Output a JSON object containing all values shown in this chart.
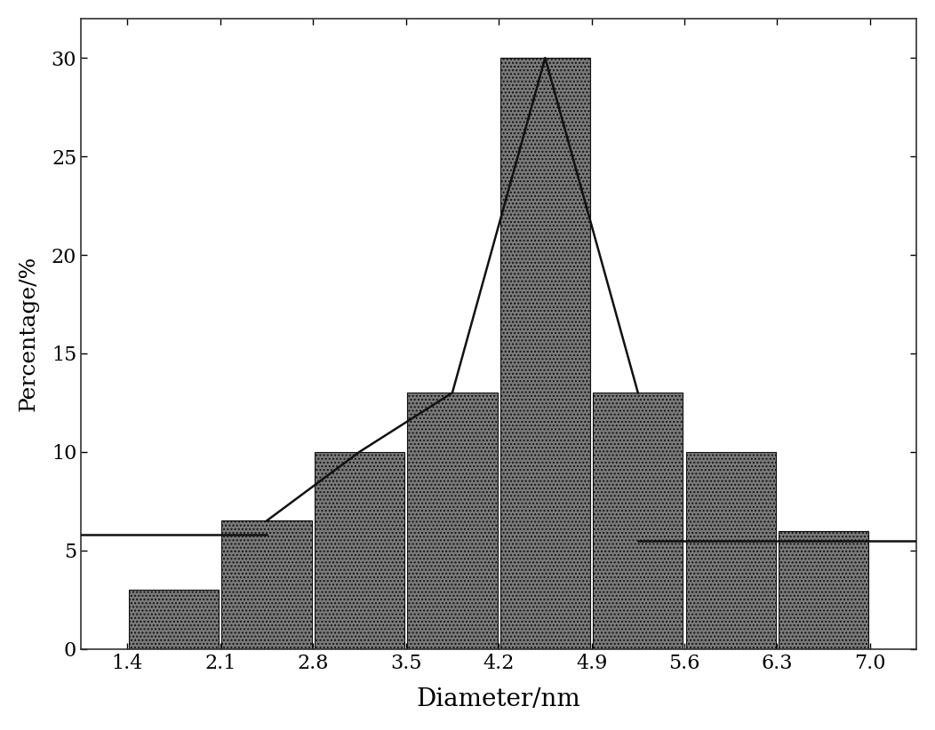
{
  "bar_edges": [
    1.4,
    2.1,
    2.8,
    3.5,
    4.2,
    4.9,
    5.6,
    6.3,
    7.0
  ],
  "bar_heights": [
    3,
    6.5,
    10,
    13,
    30,
    13,
    10,
    6
  ],
  "xlabel": "Diameter/nm",
  "ylabel": "Percentage/%",
  "xlim_left": 1.05,
  "xlim_right": 7.35,
  "ylim": [
    0,
    32
  ],
  "yticks": [
    0,
    5,
    10,
    15,
    20,
    25,
    30
  ],
  "xticks": [
    1.4,
    2.1,
    2.8,
    3.5,
    4.2,
    4.9,
    5.6,
    6.3,
    7.0
  ],
  "bar_color": "#7a7a7a",
  "bar_edgecolor": "#111111",
  "line_color": "#111111",
  "line_flat_y": 5.8,
  "line_flat_right_y": 5.5,
  "figsize": [
    10.52,
    8.22
  ],
  "dpi": 100,
  "xlabel_fontsize": 20,
  "ylabel_fontsize": 18,
  "tick_fontsize": 16
}
